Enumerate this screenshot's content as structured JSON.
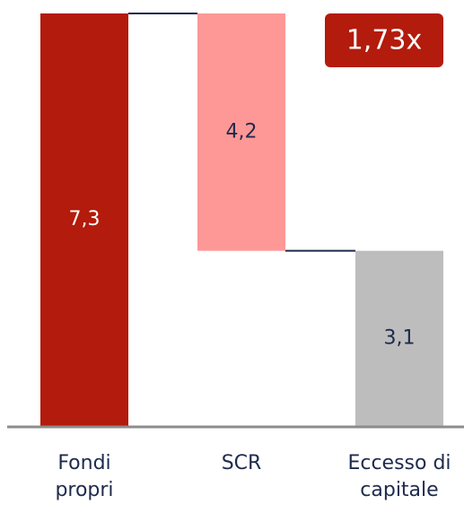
{
  "chart_data": {
    "type": "waterfall",
    "categories": [
      "Fondi propri",
      "SCR",
      "Eccesso di capitale"
    ],
    "values": [
      7.3,
      -4.2,
      3.1
    ],
    "value_labels": [
      "7,3",
      "4,2",
      "3,1"
    ],
    "colors": [
      "#b31b0c",
      "#fe9896",
      "#bdbdbd"
    ],
    "ylim": [
      0,
      7.3
    ],
    "annotation": "1,73x"
  }
}
